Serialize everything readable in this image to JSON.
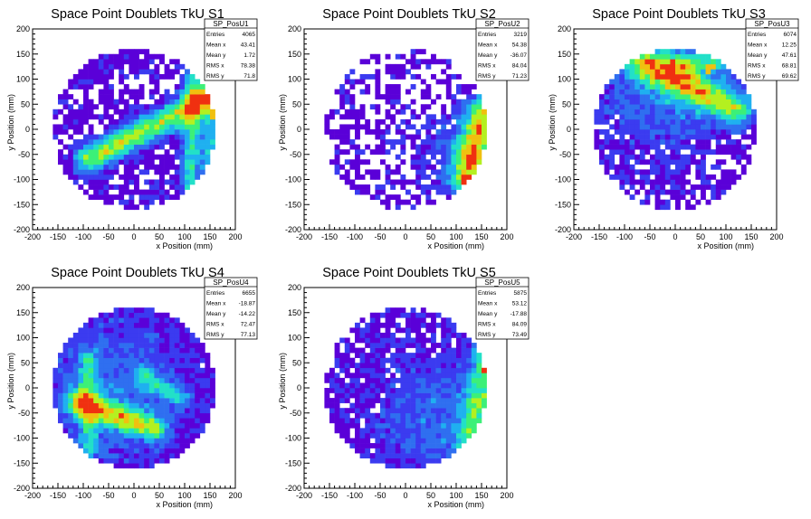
{
  "page": {
    "background": "#ffffff"
  },
  "colors": {
    "palette": [
      "#5a00d8",
      "#3b3bf0",
      "#2f6ff0",
      "#1fb0f0",
      "#22e0c8",
      "#3cf078",
      "#b4f020",
      "#f0c010",
      "#f03010"
    ]
  },
  "chart_data": [
    {
      "type": "heatmap",
      "title": "Space Point Doublets TkU S1",
      "xlabel": "x Position (mm)",
      "ylabel": "y Position (mm)",
      "xlim": [
        -200,
        200
      ],
      "ylim": [
        -200,
        200
      ],
      "xticks": [
        "-200",
        "-150",
        "-100",
        "-50",
        "0",
        "50",
        "100",
        "150",
        "200"
      ],
      "yticks": [
        "-200",
        "-150",
        "-100",
        "-50",
        "0",
        "50",
        "100",
        "150",
        "200"
      ],
      "grid": false,
      "region_radius": 160,
      "stats": {
        "name": "SP_PosU1",
        "labels": [
          "Entries",
          "Mean x",
          "Mean y",
          "RMS x",
          "RMS y"
        ],
        "values": [
          "4065",
          "43.41",
          "1.72",
          "78.38",
          "71.8"
        ]
      },
      "occupancy": 0.75,
      "features": [
        {
          "kind": "line",
          "x1": -90,
          "y1": -60,
          "x2": 140,
          "y2": 60,
          "width": 18,
          "amp": 5
        },
        {
          "kind": "line",
          "x1": 110,
          "y1": -110,
          "x2": 120,
          "y2": 100,
          "width": 14,
          "amp": 3.5
        },
        {
          "kind": "line",
          "x1": 150,
          "y1": -90,
          "x2": 155,
          "y2": 60,
          "width": 12,
          "amp": 3
        }
      ],
      "hotspots": [
        {
          "x": 110,
          "y": 40,
          "level": 8
        },
        {
          "x": 150,
          "y": 30,
          "level": 7
        }
      ]
    },
    {
      "type": "heatmap",
      "title": "Space Point Doublets TkU S2",
      "xlabel": "x Position (mm)",
      "ylabel": "y Position (mm)",
      "xlim": [
        -200,
        200
      ],
      "ylim": [
        -200,
        200
      ],
      "xticks": [
        "-200",
        "-150",
        "-100",
        "-50",
        "0",
        "50",
        "100",
        "150",
        "200"
      ],
      "yticks": [
        "-200",
        "-150",
        "-100",
        "-50",
        "0",
        "50",
        "100",
        "150",
        "200"
      ],
      "grid": false,
      "region_radius": 160,
      "stats": {
        "name": "SP_PosU2",
        "labels": [
          "Entries",
          "Mean x",
          "Mean y",
          "RMS x",
          "RMS y"
        ],
        "values": [
          "3219",
          "54.38",
          "-36.07",
          "84.04",
          "71.23"
        ]
      },
      "occupancy": 0.55,
      "features": [
        {
          "kind": "line",
          "x1": 120,
          "y1": -100,
          "x2": 155,
          "y2": 40,
          "width": 22,
          "amp": 5
        },
        {
          "kind": "blob",
          "x": 100,
          "y": -40,
          "r": 50,
          "amp": 1.5
        }
      ],
      "hotspots": [
        {
          "x": 150,
          "y": 0,
          "level": 8
        },
        {
          "x": 120,
          "y": -100,
          "level": 8
        }
      ]
    },
    {
      "type": "heatmap",
      "title": "Space Point Doublets TkU S3",
      "xlabel": "x Position (mm)",
      "ylabel": "y Position (mm)",
      "xlim": [
        -200,
        200
      ],
      "ylim": [
        -200,
        200
      ],
      "xticks": [
        "-200",
        "-150",
        "-100",
        "-50",
        "0",
        "50",
        "100",
        "150",
        "200"
      ],
      "yticks": [
        "-200",
        "-150",
        "-100",
        "-50",
        "0",
        "50",
        "100",
        "150",
        "200"
      ],
      "grid": false,
      "region_radius": 160,
      "stats": {
        "name": "SP_PosU3",
        "labels": [
          "Entries",
          "Mean x",
          "Mean y",
          "RMS x",
          "RMS y"
        ],
        "values": [
          "6074",
          "12.25",
          "47.61",
          "68.81",
          "69.62"
        ]
      },
      "occupancy": 0.7,
      "features": [
        {
          "kind": "line",
          "x1": -60,
          "y1": 130,
          "x2": 120,
          "y2": 40,
          "width": 22,
          "amp": 4.5
        },
        {
          "kind": "blob",
          "x": -20,
          "y": 90,
          "r": 90,
          "amp": 2
        },
        {
          "kind": "line",
          "x1": 0,
          "y1": 130,
          "x2": 140,
          "y2": 140,
          "width": 14,
          "amp": 2.5
        }
      ],
      "hotspots": [
        {
          "x": 70,
          "y": 120,
          "level": 7
        }
      ]
    },
    {
      "type": "heatmap",
      "title": "Space Point Doublets TkU S4",
      "xlabel": "x Position (mm)",
      "ylabel": "y Position (mm)",
      "xlim": [
        -200,
        200
      ],
      "ylim": [
        -200,
        200
      ],
      "xticks": [
        "-200",
        "-150",
        "-100",
        "-50",
        "0",
        "50",
        "100",
        "150",
        "200"
      ],
      "yticks": [
        "-200",
        "-150",
        "-100",
        "-50",
        "0",
        "50",
        "100",
        "150",
        "200"
      ],
      "grid": false,
      "region_radius": 160,
      "stats": {
        "name": "SP_PosU4",
        "labels": [
          "Entries",
          "Mean x",
          "Mean y",
          "RMS x",
          "RMS y"
        ],
        "values": [
          "6655",
          "-18.87",
          "-14.22",
          "72.47",
          "77.13"
        ]
      },
      "occupancy": 0.85,
      "features": [
        {
          "kind": "line",
          "x1": -110,
          "y1": -30,
          "x2": 40,
          "y2": -80,
          "width": 18,
          "amp": 4.5
        },
        {
          "kind": "line",
          "x1": -90,
          "y1": -120,
          "x2": -90,
          "y2": 60,
          "width": 14,
          "amp": 2.5
        },
        {
          "kind": "line",
          "x1": 20,
          "y1": 20,
          "x2": 90,
          "y2": -20,
          "width": 14,
          "amp": 2.5
        },
        {
          "kind": "blob",
          "x": -40,
          "y": 0,
          "r": 110,
          "amp": 1.5
        }
      ],
      "hotspots": [
        {
          "x": -40,
          "y": -55,
          "level": 6
        }
      ]
    },
    {
      "type": "heatmap",
      "title": "Space Point Doublets TkU S5",
      "xlabel": "x Position (mm)",
      "ylabel": "y Position (mm)",
      "xlim": [
        -200,
        200
      ],
      "ylim": [
        -200,
        200
      ],
      "xticks": [
        "-200",
        "-150",
        "-100",
        "-50",
        "0",
        "50",
        "100",
        "150",
        "200"
      ],
      "yticks": [
        "-200",
        "-150",
        "-100",
        "-50",
        "0",
        "50",
        "100",
        "150",
        "200"
      ],
      "grid": false,
      "region_radius": 160,
      "stats": {
        "name": "SP_PosU5",
        "labels": [
          "Entries",
          "Mean x",
          "Mean y",
          "RMS x",
          "RMS y"
        ],
        "values": [
          "5875",
          "53.12",
          "-17.88",
          "84.09",
          "73.49"
        ]
      },
      "occupancy": 0.72,
      "features": [
        {
          "kind": "line",
          "x1": 130,
          "y1": -110,
          "x2": 160,
          "y2": 70,
          "width": 20,
          "amp": 3.5
        },
        {
          "kind": "blob",
          "x": 60,
          "y": -60,
          "r": 90,
          "amp": 1.6
        }
      ],
      "hotspots": [
        {
          "x": 155,
          "y": 40,
          "level": 8
        }
      ]
    }
  ]
}
